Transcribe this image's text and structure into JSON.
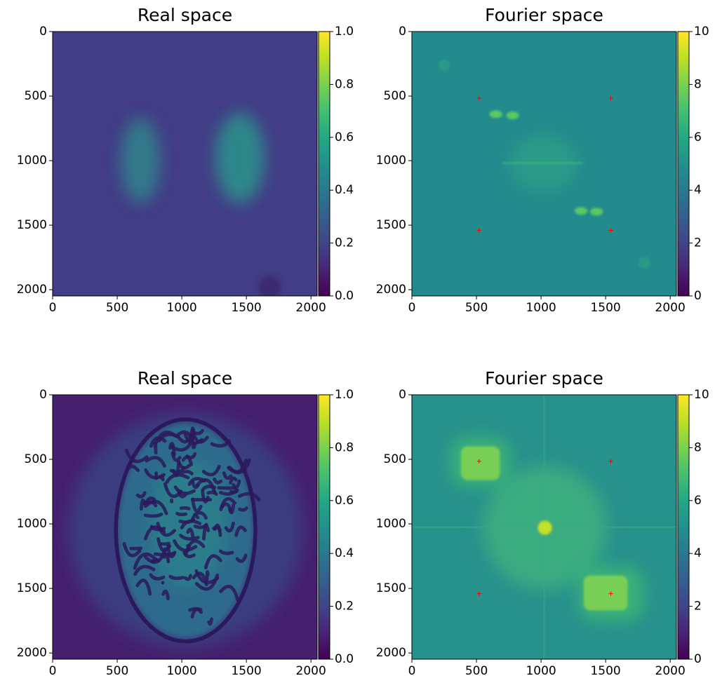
{
  "chart_data": [
    {
      "type": "image",
      "title": "Real space",
      "colormap": "viridis",
      "xlim": [
        0,
        2048
      ],
      "ylim": [
        2048,
        0
      ],
      "xticks": [
        0,
        500,
        1000,
        1500,
        2000
      ],
      "yticks": [
        0,
        500,
        1000,
        1500,
        2000
      ],
      "colorbar": {
        "lim": [
          0,
          1
        ],
        "ticks": [
          {
            "value": 0,
            "label": "0.0"
          },
          0.2,
          0.4,
          0.6,
          0.8,
          {
            "value": 1,
            "label": "1.0"
          }
        ]
      }
    },
    {
      "type": "image",
      "title": "Fourier space",
      "colormap": "viridis",
      "xlim": [
        0,
        2048
      ],
      "ylim": [
        2048,
        0
      ],
      "xticks": [
        0,
        500,
        1000,
        1500,
        2000
      ],
      "yticks": [
        0,
        500,
        1000,
        1500,
        2000
      ],
      "colorbar": {
        "lim": [
          0,
          10
        ],
        "ticks": [
          0,
          2,
          4,
          6,
          8,
          10
        ]
      },
      "markers": {
        "color": "red",
        "x": [
          520,
          1540,
          520,
          1540
        ],
        "y": [
          515,
          515,
          1540,
          1540
        ]
      }
    },
    {
      "type": "image",
      "title": "Real space",
      "colormap": "viridis",
      "xlim": [
        0,
        2048
      ],
      "ylim": [
        2048,
        0
      ],
      "xticks": [
        0,
        500,
        1000,
        1500,
        2000
      ],
      "yticks": [
        0,
        500,
        1000,
        1500,
        2000
      ],
      "colorbar": {
        "lim": [
          0,
          1
        ],
        "ticks": [
          {
            "value": 0,
            "label": "0.0"
          },
          0.2,
          0.4,
          0.6,
          0.8,
          {
            "value": 1,
            "label": "1.0"
          }
        ]
      }
    },
    {
      "type": "image",
      "title": "Fourier space",
      "colormap": "viridis",
      "xlim": [
        0,
        2048
      ],
      "ylim": [
        2048,
        0
      ],
      "xticks": [
        0,
        500,
        1000,
        1500,
        2000
      ],
      "yticks": [
        0,
        500,
        1000,
        1500,
        2000
      ],
      "colorbar": {
        "lim": [
          0,
          10
        ],
        "ticks": [
          0,
          2,
          4,
          6,
          8,
          10
        ]
      },
      "markers": {
        "color": "red",
        "x": [
          520,
          1540,
          520,
          1540
        ],
        "y": [
          515,
          515,
          1540,
          1540
        ]
      }
    }
  ]
}
